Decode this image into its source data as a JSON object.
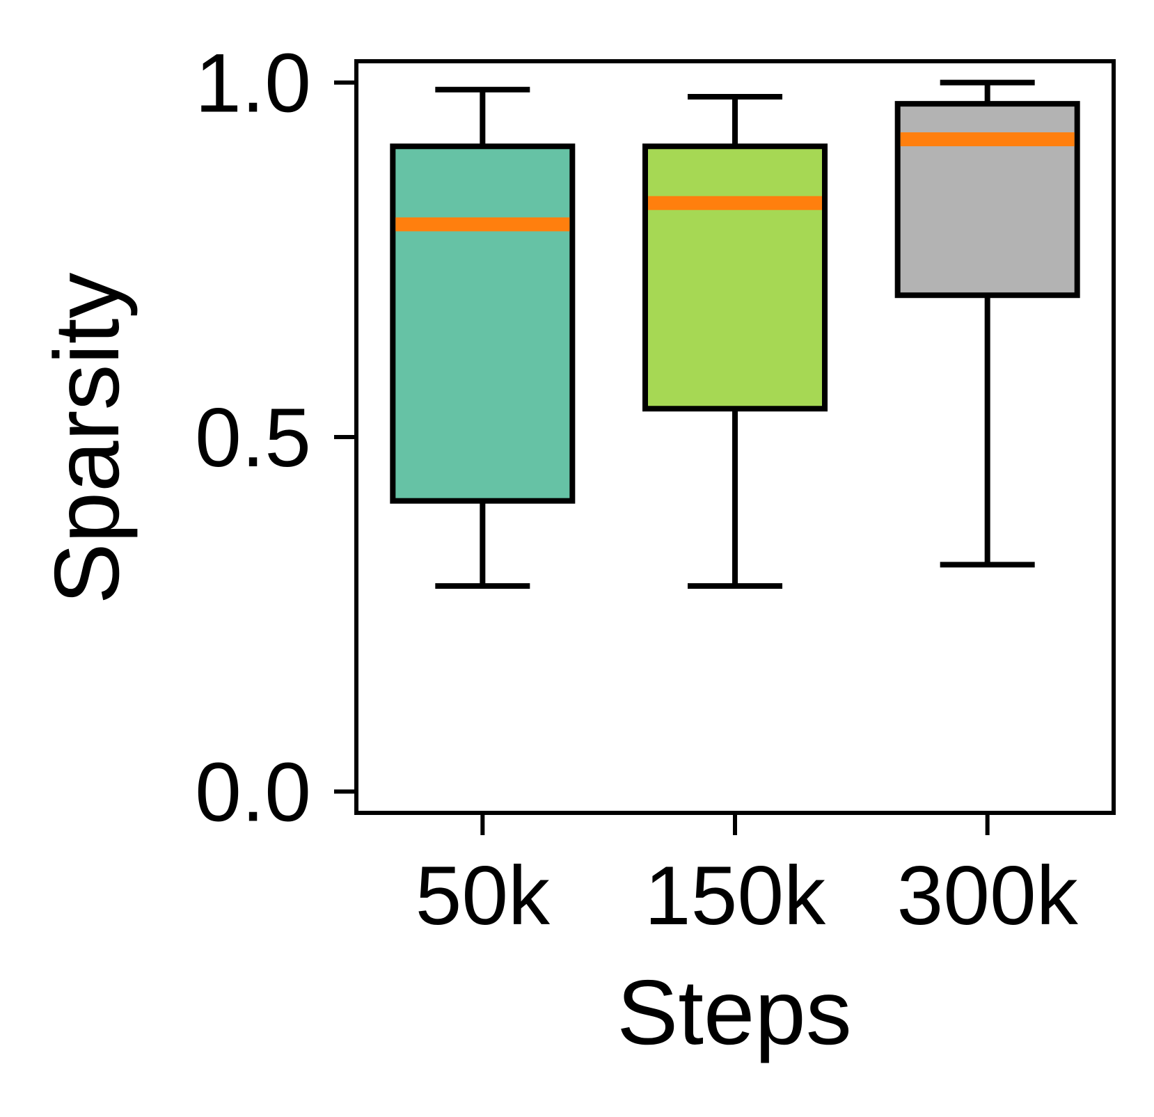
{
  "chart_data": {
    "type": "box",
    "title": "",
    "xlabel": "Steps",
    "ylabel": "Sparsity",
    "ylim": [
      -0.03,
      1.03
    ],
    "yticks": [
      0.0,
      0.5,
      1.0
    ],
    "ytick_labels": [
      "0.0",
      "0.5",
      "1.0"
    ],
    "grid": false,
    "median_color": "#ff7f0e",
    "categories": [
      "50k",
      "150k",
      "300k"
    ],
    "boxes": [
      {
        "category": "50k",
        "whisker_low": 0.29,
        "q1": 0.41,
        "median": 0.8,
        "q3": 0.91,
        "whisker_high": 0.99,
        "color": "#66c2a5"
      },
      {
        "category": "150k",
        "whisker_low": 0.29,
        "q1": 0.54,
        "median": 0.83,
        "q3": 0.91,
        "whisker_high": 0.98,
        "color": "#a6d854"
      },
      {
        "category": "300k",
        "whisker_low": 0.32,
        "q1": 0.7,
        "median": 0.92,
        "q3": 0.97,
        "whisker_high": 1.0,
        "color": "#b3b3b3"
      }
    ]
  }
}
